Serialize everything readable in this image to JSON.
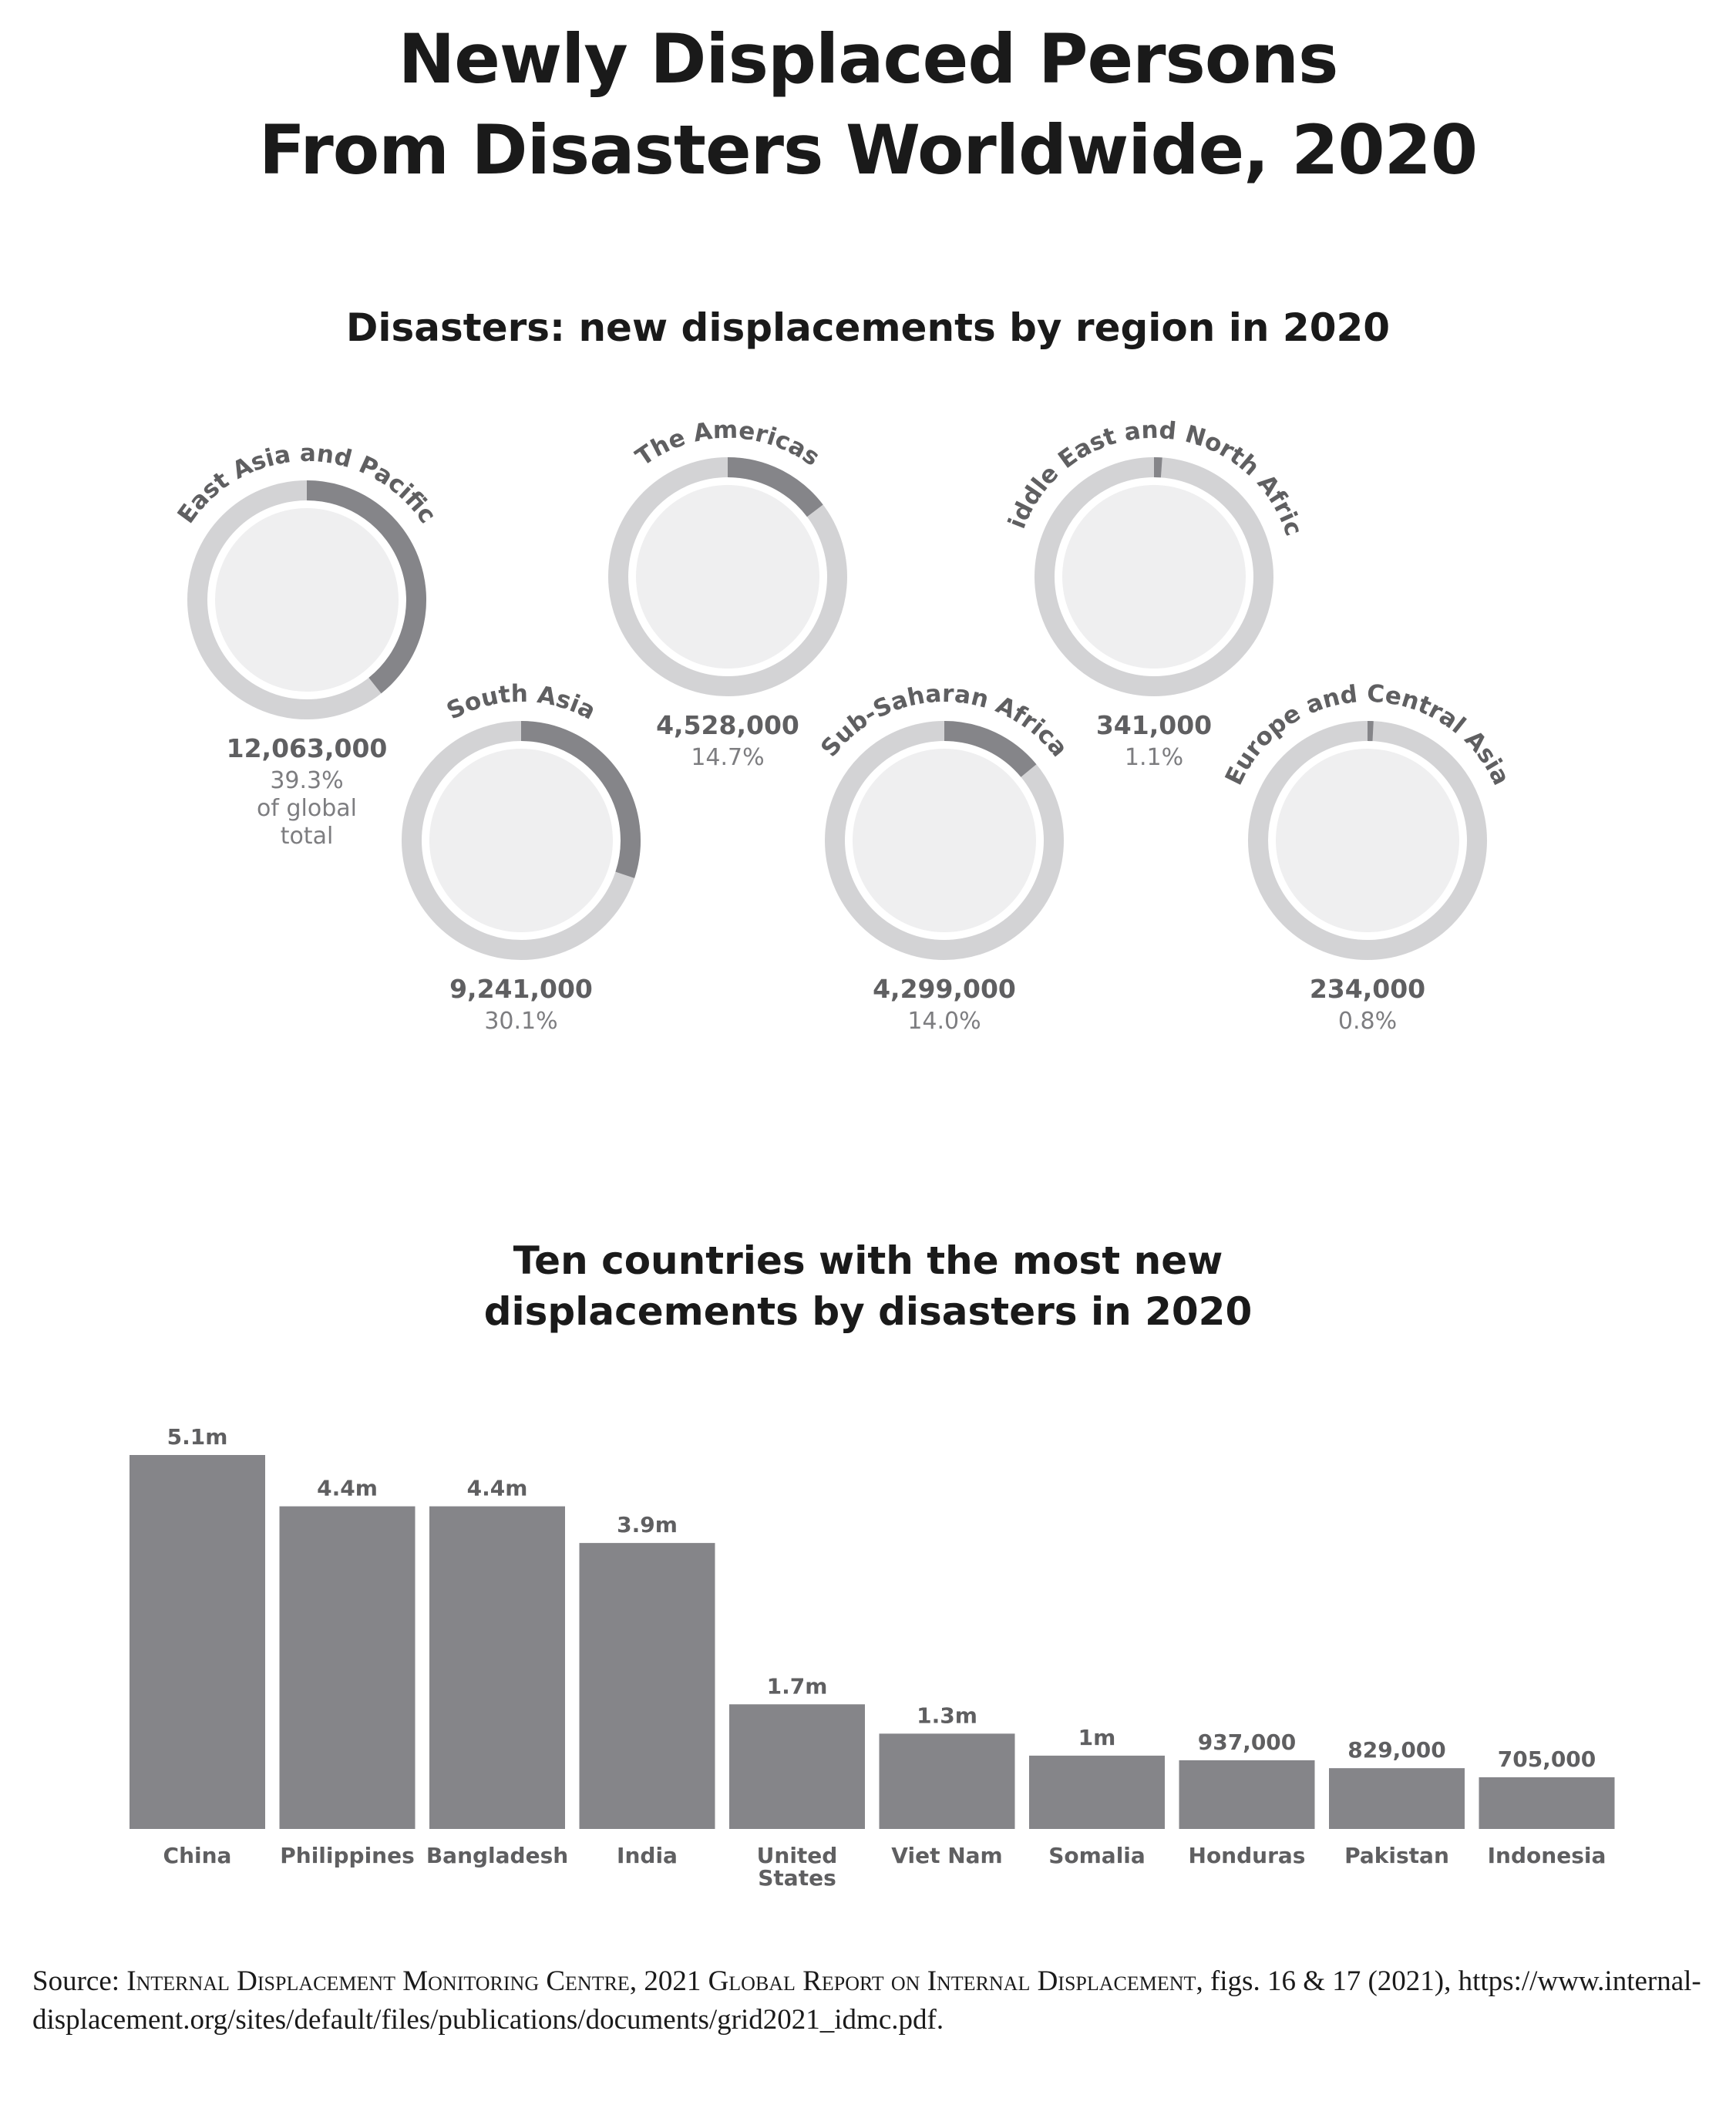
{
  "title_line1": "Newly Displaced Persons",
  "title_line2": "From Disasters Worldwide, 2020",
  "colors": {
    "ring_bg": "#d3d3d5",
    "ring_fg": "#858589",
    "land_light": "#d4d4d6",
    "land_highlight": "#5a5a5d",
    "globe_face": "#efeff0",
    "bar": "#858589",
    "label": "#5f5f61"
  },
  "chart_data": [
    {
      "type": "pie",
      "title": "Disasters: new displacements by region in 2020",
      "regions": [
        {
          "name": "East Asia and Pacific",
          "value": 12063000,
          "value_label": "12,063,000",
          "percent": 39.3,
          "percent_label": "39.3%",
          "percent_note": [
            "of global",
            "total"
          ],
          "icon": "globe-east-asia-pacific-icon"
        },
        {
          "name": "South Asia",
          "value": 9241000,
          "value_label": "9,241,000",
          "percent": 30.1,
          "percent_label": "30.1%",
          "icon": "globe-south-asia-icon"
        },
        {
          "name": "The Americas",
          "value": 4528000,
          "value_label": "4,528,000",
          "percent": 14.7,
          "percent_label": "14.7%",
          "icon": "globe-americas-icon"
        },
        {
          "name": "Sub-Saharan Africa",
          "value": 4299000,
          "value_label": "4,299,000",
          "percent": 14.0,
          "percent_label": "14.0%",
          "icon": "globe-sub-saharan-africa-icon"
        },
        {
          "name": "Middle East and North Africa",
          "value": 341000,
          "value_label": "341,000",
          "percent": 1.1,
          "percent_label": "1.1%",
          "icon": "globe-middle-east-north-africa-icon"
        },
        {
          "name": "Europe and Central Asia",
          "value": 234000,
          "value_label": "234,000",
          "percent": 0.8,
          "percent_label": "0.8%",
          "icon": "globe-europe-central-asia-icon"
        }
      ]
    },
    {
      "type": "bar",
      "title_line1": "Ten countries with the most new",
      "title_line2": "displacements by disasters in 2020",
      "categories": [
        "China",
        "Philippines",
        "Bangladesh",
        "India",
        "United States",
        "Viet Nam",
        "Somalia",
        "Honduras",
        "Pakistan",
        "Indonesia"
      ],
      "category_lines": [
        [
          "China"
        ],
        [
          "Philippines"
        ],
        [
          "Bangladesh"
        ],
        [
          "India"
        ],
        [
          "United",
          "States"
        ],
        [
          "Viet Nam"
        ],
        [
          "Somalia"
        ],
        [
          "Honduras"
        ],
        [
          "Pakistan"
        ],
        [
          "Indonesia"
        ]
      ],
      "values": [
        5100000,
        4400000,
        4400000,
        3900000,
        1700000,
        1300000,
        1000000,
        937000,
        829000,
        705000
      ],
      "value_labels": [
        "5.1m",
        "4.4m",
        "4.4m",
        "3.9m",
        "1.7m",
        "1.3m",
        "1m",
        "937,000",
        "829,000",
        "705,000"
      ],
      "ylim": [
        0,
        5100000
      ],
      "grid": false,
      "legend": "none"
    }
  ],
  "source": {
    "prefix": "Source: ",
    "org": "Internal Displacement Monitoring Centre",
    "sep1": ", 2021 ",
    "report": "Global Report on Internal Displacement",
    "suffix": ", figs. 16 & 17 (2021), https://www.internal-displacement.org/sites/default/files/publications/documents/grid2021_idmc.pdf."
  }
}
